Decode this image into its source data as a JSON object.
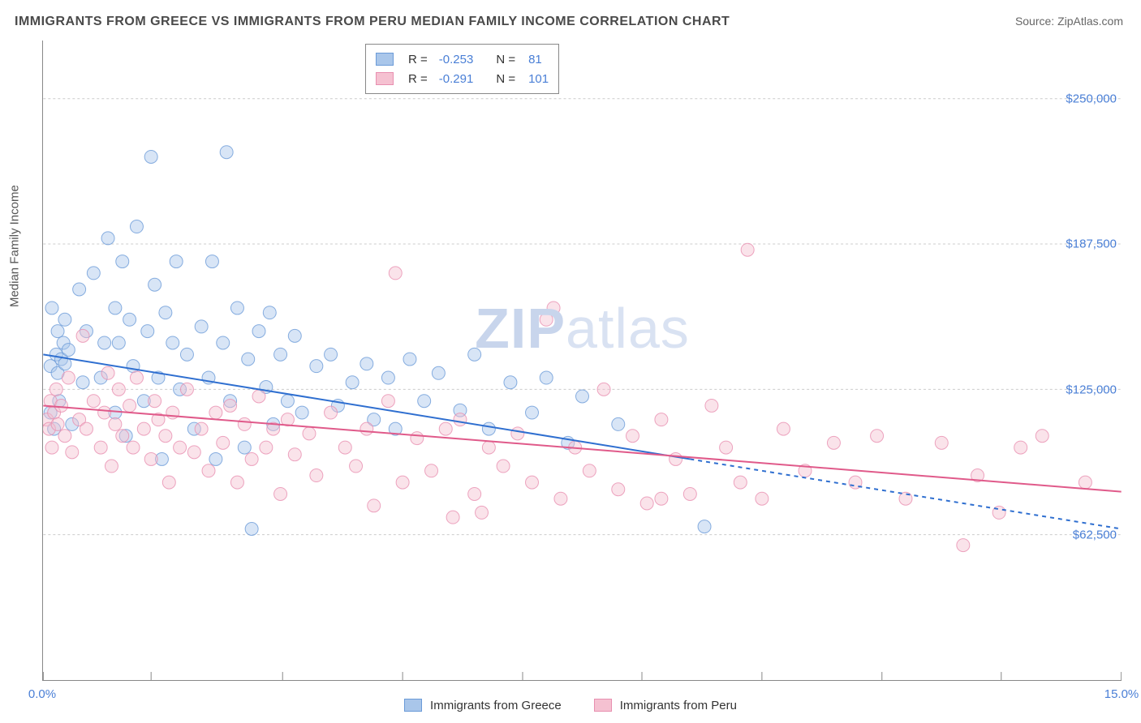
{
  "title": "IMMIGRANTS FROM GREECE VS IMMIGRANTS FROM PERU MEDIAN FAMILY INCOME CORRELATION CHART",
  "source_prefix": "Source: ",
  "source_name": "ZipAtlas.com",
  "ylabel": "Median Family Income",
  "watermark": {
    "part1": "ZIP",
    "part2": "atlas"
  },
  "chart": {
    "type": "scatter",
    "xlim": [
      0,
      15
    ],
    "ylim": [
      0,
      275000
    ],
    "xtick_labels": {
      "0": "0.0%",
      "15": "15.0%"
    },
    "xtick_positions": [
      0,
      1.5,
      3.33,
      5.0,
      6.67,
      8.33,
      10.0,
      11.67,
      13.33,
      15.0
    ],
    "ytick_positions": [
      62500,
      125000,
      187500,
      250000
    ],
    "ytick_labels": {
      "62500": "$62,500",
      "125000": "$125,000",
      "187500": "$187,500",
      "250000": "$250,000"
    },
    "grid_color": "#cccccc",
    "axis_color": "#888888",
    "label_color": "#4a7fd6",
    "background_color": "#ffffff",
    "marker_radius": 8,
    "marker_opacity": 0.45,
    "line_width": 2,
    "trend_dash_extrapolate": "5 5"
  },
  "series": [
    {
      "name": "Immigrants from Greece",
      "color_fill": "#a9c6ea",
      "color_stroke": "#6b9bd8",
      "line_color": "#2f6fd0",
      "R": "-0.253",
      "N": "81",
      "trend": {
        "x1": 0,
        "y1": 140000,
        "x2": 9.0,
        "y2": 95000,
        "x2_ext": 15.0,
        "y2_ext": 65000
      },
      "points": [
        [
          0.1,
          115000
        ],
        [
          0.1,
          135000
        ],
        [
          0.12,
          160000
        ],
        [
          0.15,
          108000
        ],
        [
          0.18,
          140000
        ],
        [
          0.2,
          132000
        ],
        [
          0.2,
          150000
        ],
        [
          0.22,
          120000
        ],
        [
          0.25,
          138000
        ],
        [
          0.28,
          145000
        ],
        [
          0.3,
          136000
        ],
        [
          0.3,
          155000
        ],
        [
          0.35,
          142000
        ],
        [
          0.4,
          110000
        ],
        [
          0.5,
          168000
        ],
        [
          0.55,
          128000
        ],
        [
          0.6,
          150000
        ],
        [
          0.7,
          175000
        ],
        [
          0.8,
          130000
        ],
        [
          0.85,
          145000
        ],
        [
          0.9,
          190000
        ],
        [
          1.0,
          115000
        ],
        [
          1.0,
          160000
        ],
        [
          1.05,
          145000
        ],
        [
          1.1,
          180000
        ],
        [
          1.15,
          105000
        ],
        [
          1.2,
          155000
        ],
        [
          1.25,
          135000
        ],
        [
          1.3,
          195000
        ],
        [
          1.4,
          120000
        ],
        [
          1.45,
          150000
        ],
        [
          1.5,
          225000
        ],
        [
          1.55,
          170000
        ],
        [
          1.6,
          130000
        ],
        [
          1.65,
          95000
        ],
        [
          1.7,
          158000
        ],
        [
          1.8,
          145000
        ],
        [
          1.85,
          180000
        ],
        [
          1.9,
          125000
        ],
        [
          2.0,
          140000
        ],
        [
          2.1,
          108000
        ],
        [
          2.2,
          152000
        ],
        [
          2.3,
          130000
        ],
        [
          2.35,
          180000
        ],
        [
          2.4,
          95000
        ],
        [
          2.5,
          145000
        ],
        [
          2.55,
          227000
        ],
        [
          2.6,
          120000
        ],
        [
          2.7,
          160000
        ],
        [
          2.8,
          100000
        ],
        [
          2.85,
          138000
        ],
        [
          2.9,
          65000
        ],
        [
          3.0,
          150000
        ],
        [
          3.1,
          126000
        ],
        [
          3.15,
          158000
        ],
        [
          3.2,
          110000
        ],
        [
          3.3,
          140000
        ],
        [
          3.4,
          120000
        ],
        [
          3.5,
          148000
        ],
        [
          3.6,
          115000
        ],
        [
          3.8,
          135000
        ],
        [
          4.0,
          140000
        ],
        [
          4.1,
          118000
        ],
        [
          4.3,
          128000
        ],
        [
          4.5,
          136000
        ],
        [
          4.6,
          112000
        ],
        [
          4.8,
          130000
        ],
        [
          4.9,
          108000
        ],
        [
          5.1,
          138000
        ],
        [
          5.3,
          120000
        ],
        [
          5.5,
          132000
        ],
        [
          5.8,
          116000
        ],
        [
          6.0,
          140000
        ],
        [
          6.2,
          108000
        ],
        [
          6.5,
          128000
        ],
        [
          6.8,
          115000
        ],
        [
          7.0,
          130000
        ],
        [
          7.3,
          102000
        ],
        [
          7.5,
          122000
        ],
        [
          8.0,
          110000
        ],
        [
          9.2,
          66000
        ]
      ]
    },
    {
      "name": "Immigrants from Peru",
      "color_fill": "#f5c1d1",
      "color_stroke": "#e88fb0",
      "line_color": "#e05a8a",
      "R": "-0.291",
      "N": "101",
      "trend": {
        "x1": 0,
        "y1": 118000,
        "x2": 15.0,
        "y2": 81000,
        "x2_ext": 15.0,
        "y2_ext": 81000
      },
      "points": [
        [
          0.05,
          112000
        ],
        [
          0.08,
          108000
        ],
        [
          0.1,
          120000
        ],
        [
          0.12,
          100000
        ],
        [
          0.15,
          115000
        ],
        [
          0.18,
          125000
        ],
        [
          0.2,
          110000
        ],
        [
          0.25,
          118000
        ],
        [
          0.3,
          105000
        ],
        [
          0.35,
          130000
        ],
        [
          0.4,
          98000
        ],
        [
          0.5,
          112000
        ],
        [
          0.55,
          148000
        ],
        [
          0.6,
          108000
        ],
        [
          0.7,
          120000
        ],
        [
          0.8,
          100000
        ],
        [
          0.85,
          115000
        ],
        [
          0.9,
          132000
        ],
        [
          0.95,
          92000
        ],
        [
          1.0,
          110000
        ],
        [
          1.05,
          125000
        ],
        [
          1.1,
          105000
        ],
        [
          1.2,
          118000
        ],
        [
          1.25,
          100000
        ],
        [
          1.3,
          130000
        ],
        [
          1.4,
          108000
        ],
        [
          1.5,
          95000
        ],
        [
          1.55,
          120000
        ],
        [
          1.6,
          112000
        ],
        [
          1.7,
          105000
        ],
        [
          1.75,
          85000
        ],
        [
          1.8,
          115000
        ],
        [
          1.9,
          100000
        ],
        [
          2.0,
          125000
        ],
        [
          2.1,
          98000
        ],
        [
          2.2,
          108000
        ],
        [
          2.3,
          90000
        ],
        [
          2.4,
          115000
        ],
        [
          2.5,
          102000
        ],
        [
          2.6,
          118000
        ],
        [
          2.7,
          85000
        ],
        [
          2.8,
          110000
        ],
        [
          2.9,
          95000
        ],
        [
          3.0,
          122000
        ],
        [
          3.1,
          100000
        ],
        [
          3.2,
          108000
        ],
        [
          3.3,
          80000
        ],
        [
          3.4,
          112000
        ],
        [
          3.5,
          97000
        ],
        [
          3.7,
          106000
        ],
        [
          3.8,
          88000
        ],
        [
          4.0,
          115000
        ],
        [
          4.2,
          100000
        ],
        [
          4.35,
          92000
        ],
        [
          4.5,
          108000
        ],
        [
          4.6,
          75000
        ],
        [
          4.8,
          120000
        ],
        [
          4.9,
          175000
        ],
        [
          5.0,
          85000
        ],
        [
          5.2,
          104000
        ],
        [
          5.4,
          90000
        ],
        [
          5.6,
          108000
        ],
        [
          5.7,
          70000
        ],
        [
          5.8,
          112000
        ],
        [
          6.0,
          80000
        ],
        [
          6.1,
          72000
        ],
        [
          6.2,
          100000
        ],
        [
          6.4,
          92000
        ],
        [
          6.6,
          106000
        ],
        [
          6.8,
          85000
        ],
        [
          7.0,
          155000
        ],
        [
          7.1,
          160000
        ],
        [
          7.2,
          78000
        ],
        [
          7.4,
          100000
        ],
        [
          7.6,
          90000
        ],
        [
          7.8,
          125000
        ],
        [
          8.0,
          82000
        ],
        [
          8.2,
          105000
        ],
        [
          8.4,
          76000
        ],
        [
          8.6,
          78000
        ],
        [
          8.6,
          112000
        ],
        [
          8.8,
          95000
        ],
        [
          9.0,
          80000
        ],
        [
          9.3,
          118000
        ],
        [
          9.5,
          100000
        ],
        [
          9.7,
          85000
        ],
        [
          9.8,
          185000
        ],
        [
          10.0,
          78000
        ],
        [
          10.3,
          108000
        ],
        [
          10.6,
          90000
        ],
        [
          11.0,
          102000
        ],
        [
          11.3,
          85000
        ],
        [
          11.6,
          105000
        ],
        [
          12.0,
          78000
        ],
        [
          12.5,
          102000
        ],
        [
          12.8,
          58000
        ],
        [
          13.0,
          88000
        ],
        [
          13.3,
          72000
        ],
        [
          13.6,
          100000
        ],
        [
          13.9,
          105000
        ],
        [
          14.5,
          85000
        ]
      ]
    }
  ],
  "legend_labels": {
    "R": "R =",
    "N": "N ="
  }
}
